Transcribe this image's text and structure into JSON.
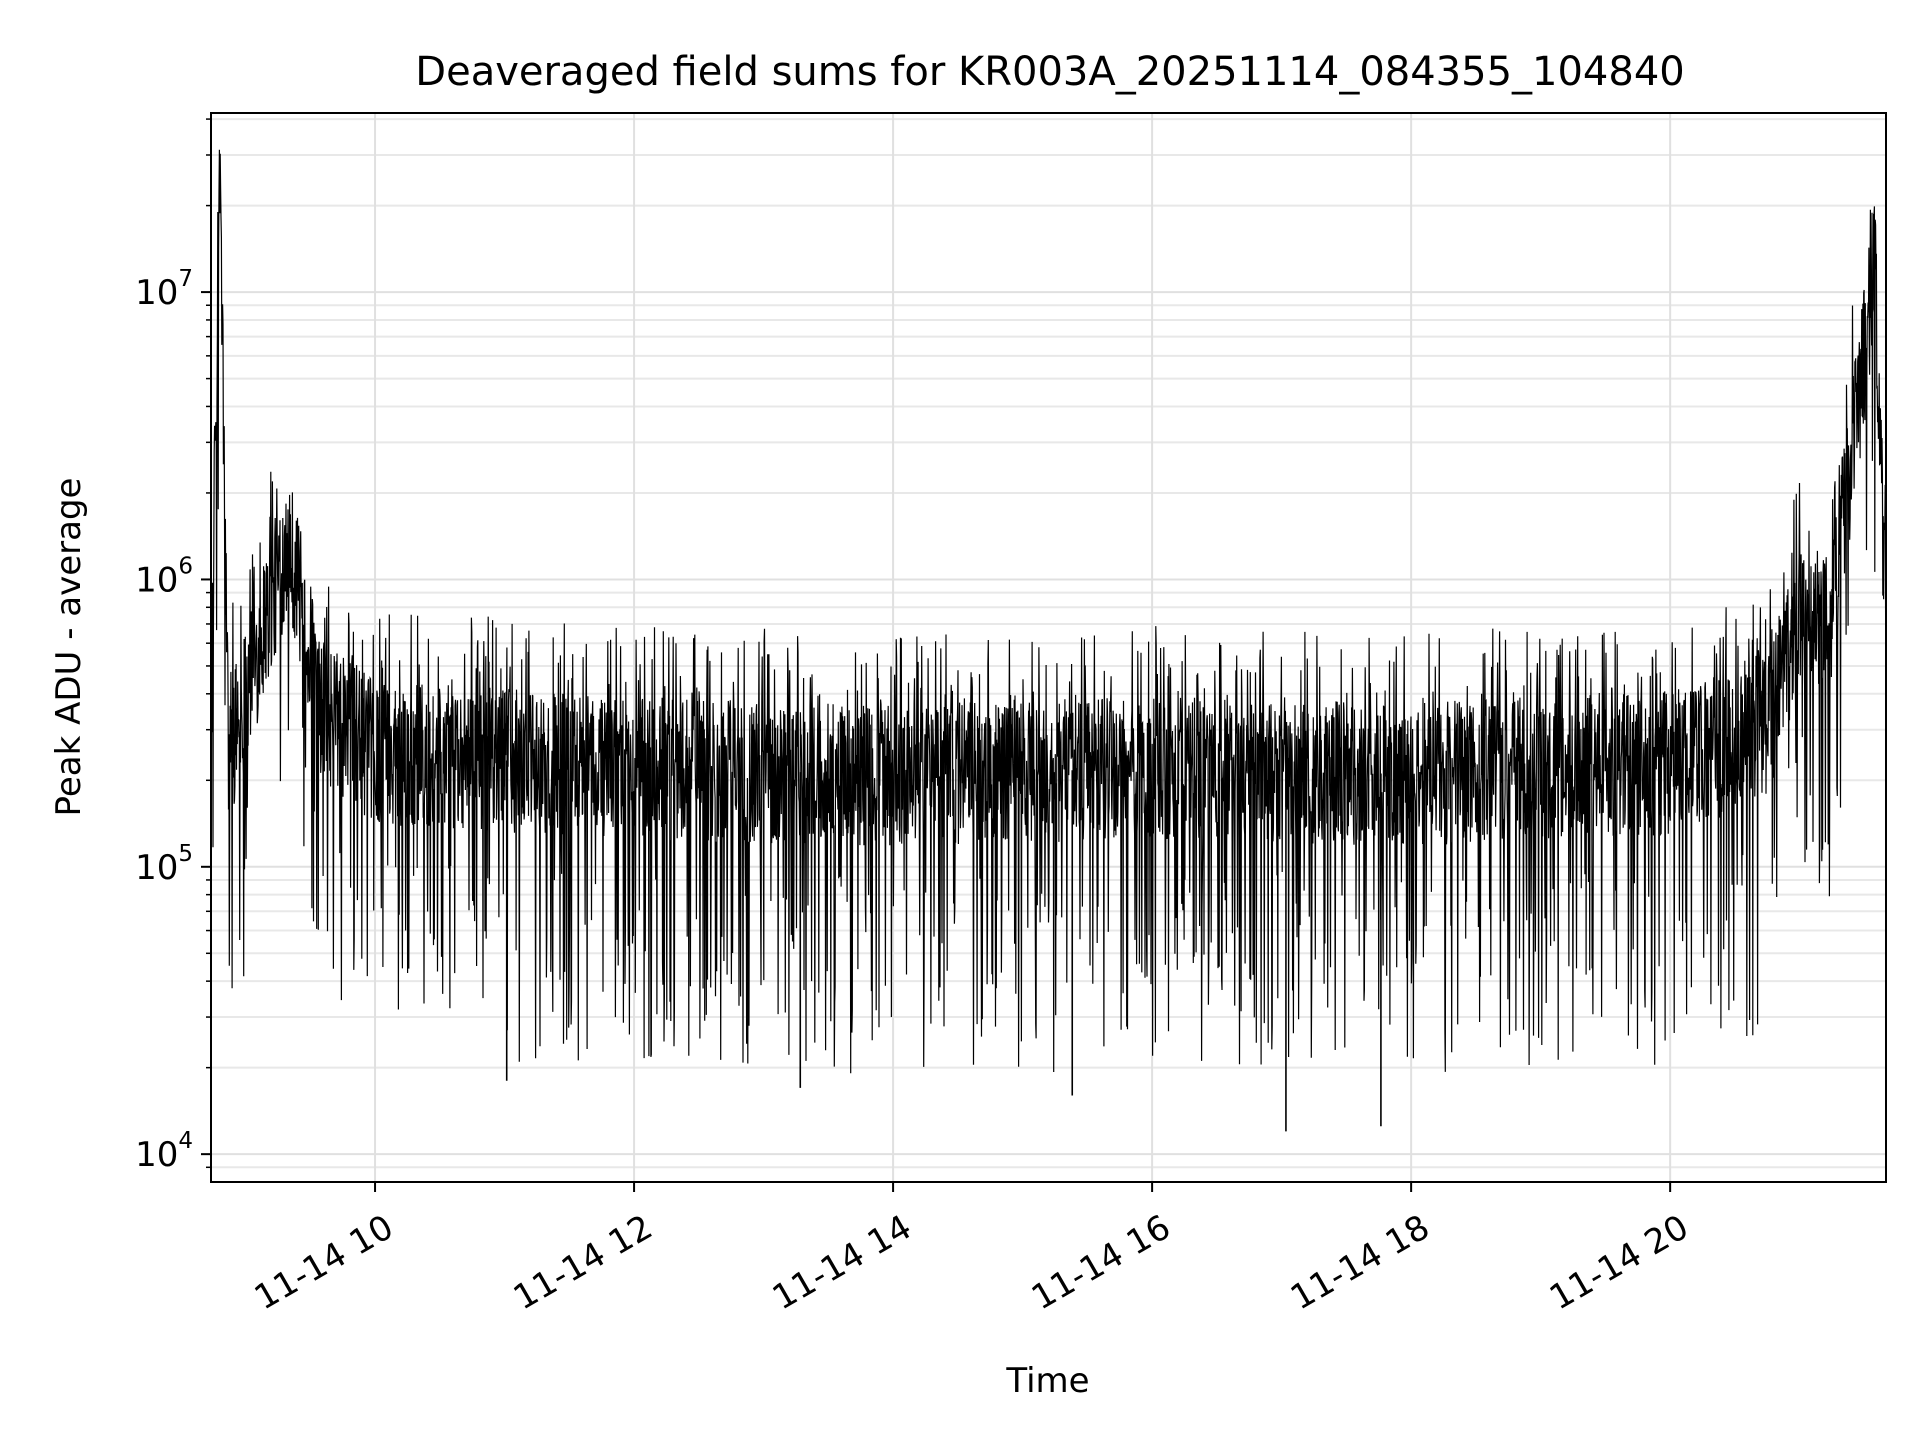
{
  "chart_data": {
    "type": "line",
    "title": "Deaveraged field sums for KR003A_20251114_084355_104840",
    "xlabel": "Time",
    "ylabel": "Peak ADU - average",
    "yscale": "log",
    "xlim": [
      "2025-11-14T08:44",
      "2025-11-14T21:40"
    ],
    "ylim": [
      8000,
      42000000
    ],
    "x_ticks": [
      {
        "value": "2025-11-14T10:00",
        "label": "11-14 10"
      },
      {
        "value": "2025-11-14T12:00",
        "label": "11-14 12"
      },
      {
        "value": "2025-11-14T14:00",
        "label": "11-14 14"
      },
      {
        "value": "2025-11-14T16:00",
        "label": "11-14 16"
      },
      {
        "value": "2025-11-14T18:00",
        "label": "11-14 18"
      },
      {
        "value": "2025-11-14T20:00",
        "label": "11-14 20"
      }
    ],
    "y_ticks": [
      {
        "value": 10000,
        "base": "10",
        "exp": "4"
      },
      {
        "value": 100000,
        "base": "10",
        "exp": "5"
      },
      {
        "value": 1000000,
        "base": "10",
        "exp": "6"
      },
      {
        "value": 10000000,
        "base": "10",
        "exp": "7"
      }
    ],
    "grid": true,
    "line_color": "#000000",
    "series": [
      {
        "values_envelope": [
          {
            "x": "2025-11-14T08:44",
            "y": 300000
          },
          {
            "x": "2025-11-14T08:48",
            "y": 30000000
          },
          {
            "x": "2025-11-14T08:52",
            "y": 250000
          },
          {
            "x": "2025-11-14T09:00",
            "y": 400000
          },
          {
            "x": "2025-11-14T09:15",
            "y": 1000000
          },
          {
            "x": "2025-11-14T09:20",
            "y": 1400000
          },
          {
            "x": "2025-11-14T09:35",
            "y": 350000
          },
          {
            "x": "2025-11-14T10:00",
            "y": 250000
          },
          {
            "x": "2025-11-14T12:00",
            "y": 220000
          },
          {
            "x": "2025-11-14T14:00",
            "y": 210000
          },
          {
            "x": "2025-11-14T16:00",
            "y": 220000
          },
          {
            "x": "2025-11-14T18:00",
            "y": 210000
          },
          {
            "x": "2025-11-14T20:00",
            "y": 230000
          },
          {
            "x": "2025-11-14T20:45",
            "y": 300000
          },
          {
            "x": "2025-11-14T21:00",
            "y": 700000
          },
          {
            "x": "2025-11-14T21:15",
            "y": 800000
          },
          {
            "x": "2025-11-14T21:35",
            "y": 12000000
          },
          {
            "x": "2025-11-14T21:40",
            "y": 600000
          }
        ],
        "notable_minima": [
          {
            "x": "2025-11-14T17:02",
            "y": 12000
          },
          {
            "x": "2025-11-14T17:46",
            "y": 12500
          },
          {
            "x": "2025-11-14T13:17",
            "y": 17000
          },
          {
            "x": "2025-11-14T15:23",
            "y": 16000
          },
          {
            "x": "2025-11-14T11:01",
            "y": 18000
          }
        ]
      }
    ]
  }
}
